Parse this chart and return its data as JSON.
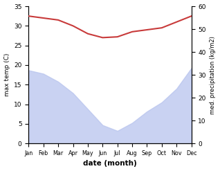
{
  "months": [
    "Jan",
    "Feb",
    "Mar",
    "Apr",
    "May",
    "Jun",
    "Jul",
    "Aug",
    "Sep",
    "Oct",
    "Nov",
    "Dec"
  ],
  "temp": [
    32.5,
    32.0,
    31.5,
    30.0,
    28.0,
    27.0,
    27.2,
    28.5,
    29.0,
    29.5,
    31.0,
    32.5
  ],
  "precip": [
    320,
    305,
    270,
    220,
    150,
    80,
    55,
    90,
    140,
    180,
    240,
    330
  ],
  "temp_color": "#c83a3a",
  "precip_color": "#b8c4ee",
  "precip_alpha": 0.75,
  "bg_color": "#ffffff",
  "ylabel_left": "max temp (C)",
  "ylabel_right": "med. precipitation (kg/m2)",
  "xlabel": "date (month)",
  "ylim_left": [
    0,
    35
  ],
  "ylim_right": [
    0,
    600
  ],
  "right_axis_ticks": [
    0,
    10,
    20,
    30,
    40,
    50,
    60
  ],
  "right_axis_tick_vals": [
    0,
    100,
    200,
    300,
    400,
    500,
    600
  ],
  "title": ""
}
